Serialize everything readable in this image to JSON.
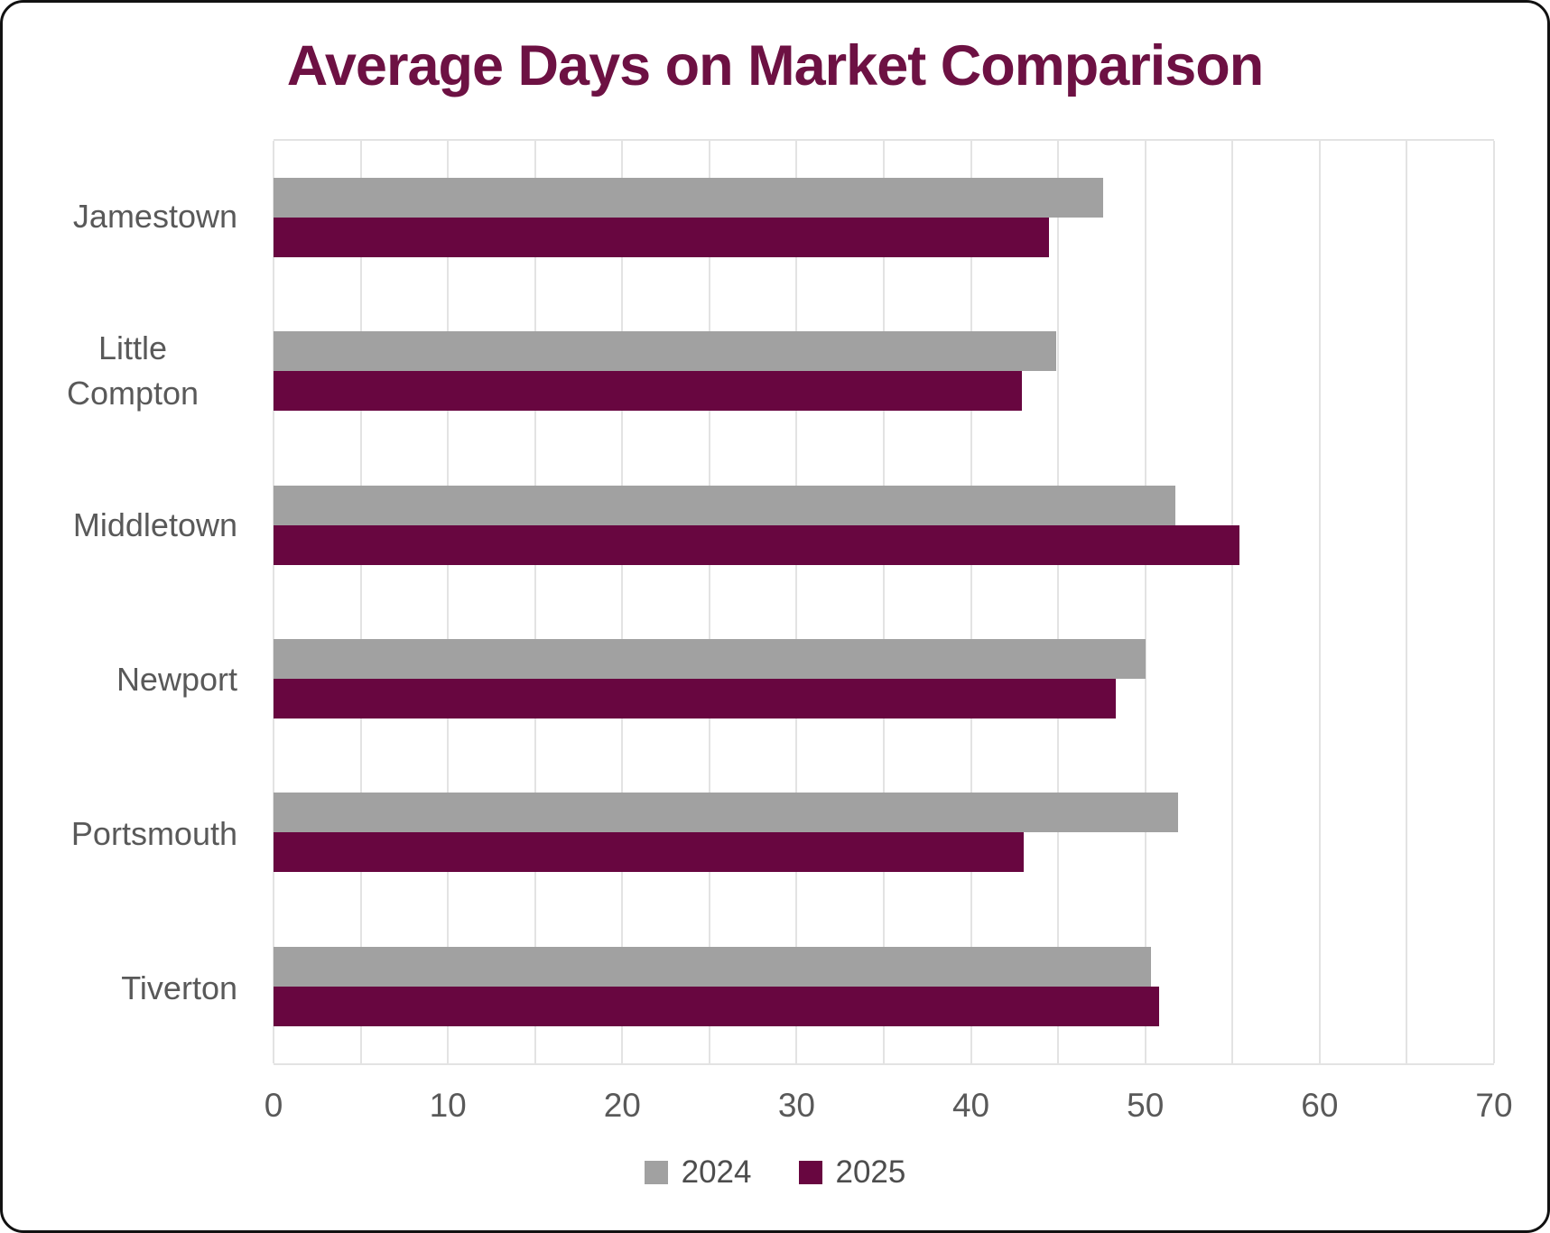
{
  "chart_data": {
    "type": "bar",
    "orientation": "horizontal",
    "title": "Average Days on Market Comparison",
    "title_color": "#6D1143",
    "categories": [
      "Jamestown",
      "Little Compton",
      "Middletown",
      "Newport",
      "Portsmouth",
      "Tiverton"
    ],
    "series": [
      {
        "name": "2024",
        "color": "#A1A1A1",
        "values": [
          47.6,
          44.9,
          51.7,
          50.0,
          51.9,
          50.3
        ]
      },
      {
        "name": "2025",
        "color": "#680640",
        "values": [
          44.5,
          42.9,
          55.4,
          48.3,
          43.0,
          50.8
        ]
      }
    ],
    "xlim": [
      0,
      70
    ],
    "x_ticks": [
      0,
      10,
      20,
      30,
      40,
      50,
      60,
      70
    ],
    "gridline_step": 5,
    "grid": "vertical minor gridlines every 5 units",
    "legend_position": "bottom-center",
    "axis_text_color": "#595959",
    "gridline_color": "#E3E3E3",
    "background_color": "#ffffff"
  }
}
